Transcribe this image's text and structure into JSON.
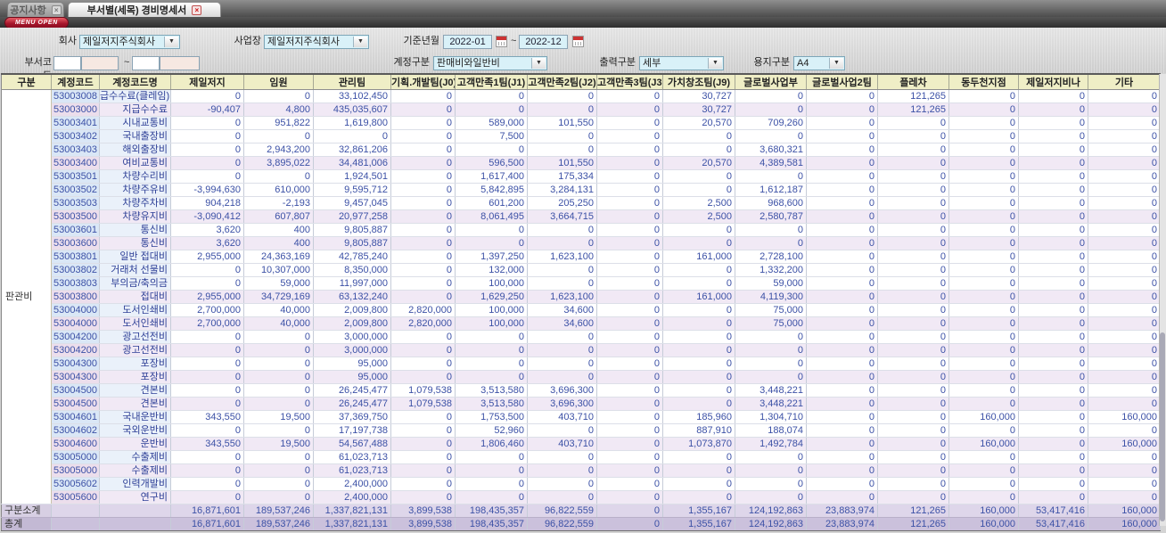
{
  "tabs": [
    {
      "label": "공지사항",
      "active": false
    },
    {
      "label": "부서별(세목) 경비명세서",
      "active": true
    }
  ],
  "menu_button_label": "MENU OPEN",
  "filters": {
    "company_label": "회사",
    "company_value": "제일저지주식회사",
    "site_label": "사업장",
    "site_value": "제일저지주식회사",
    "period_label": "기준년월",
    "period_from": "2022-01",
    "period_to": "2022-12",
    "dept_label": "부서코드",
    "account_label": "계정구분",
    "account_value": "판매비와일반비",
    "output_label": "출력구분",
    "output_value": "세부",
    "paper_label": "용지구분",
    "paper_value": "A4",
    "tilde": "~"
  },
  "table": {
    "group_label": "판관비",
    "columns": [
      "구분",
      "계정코드",
      "계정코드명",
      "제일저지",
      "임원",
      "관리팀",
      "기획.개발팀(J0)",
      "고객만족1팀(J1)",
      "고객만족2팀(J2)",
      "고객만족3팀(J3)",
      "가치창조팀(J9)",
      "글로벌사업부",
      "글로벌사업2팀",
      "플레차",
      "동두천지점",
      "제일저지비나",
      "기타"
    ],
    "rows": [
      {
        "code": "53003008",
        "name": "급수수료(클레임)",
        "type": "n",
        "v": [
          "0",
          "0",
          "33,102,450",
          "0",
          "0",
          "0",
          "0",
          "30,727",
          "0",
          "0",
          "121,265",
          "0",
          "0",
          "0"
        ]
      },
      {
        "code": "53003000",
        "name": "지급수수료",
        "type": "s",
        "v": [
          "-90,407",
          "4,800",
          "435,035,607",
          "0",
          "0",
          "0",
          "0",
          "30,727",
          "0",
          "0",
          "121,265",
          "0",
          "0",
          "0"
        ]
      },
      {
        "code": "53003401",
        "name": "시내교통비",
        "type": "n",
        "v": [
          "0",
          "951,822",
          "1,619,800",
          "0",
          "589,000",
          "101,550",
          "0",
          "20,570",
          "709,260",
          "0",
          "0",
          "0",
          "0",
          "0"
        ]
      },
      {
        "code": "53003402",
        "name": "국내출장비",
        "type": "n",
        "v": [
          "0",
          "0",
          "0",
          "0",
          "7,500",
          "0",
          "0",
          "0",
          "0",
          "0",
          "0",
          "0",
          "0",
          "0"
        ]
      },
      {
        "code": "53003403",
        "name": "해외출장비",
        "type": "n",
        "v": [
          "0",
          "2,943,200",
          "32,861,206",
          "0",
          "0",
          "0",
          "0",
          "0",
          "3,680,321",
          "0",
          "0",
          "0",
          "0",
          "0"
        ]
      },
      {
        "code": "53003400",
        "name": "여비교통비",
        "type": "s",
        "v": [
          "0",
          "3,895,022",
          "34,481,006",
          "0",
          "596,500",
          "101,550",
          "0",
          "20,570",
          "4,389,581",
          "0",
          "0",
          "0",
          "0",
          "0"
        ]
      },
      {
        "code": "53003501",
        "name": "차량수리비",
        "type": "n",
        "v": [
          "0",
          "0",
          "1,924,501",
          "0",
          "1,617,400",
          "175,334",
          "0",
          "0",
          "0",
          "0",
          "0",
          "0",
          "0",
          "0"
        ]
      },
      {
        "code": "53003502",
        "name": "차량주유비",
        "type": "n",
        "v": [
          "-3,994,630",
          "610,000",
          "9,595,712",
          "0",
          "5,842,895",
          "3,284,131",
          "0",
          "0",
          "1,612,187",
          "0",
          "0",
          "0",
          "0",
          "0"
        ]
      },
      {
        "code": "53003503",
        "name": "차량주차비",
        "type": "n",
        "v": [
          "904,218",
          "-2,193",
          "9,457,045",
          "0",
          "601,200",
          "205,250",
          "0",
          "2,500",
          "968,600",
          "0",
          "0",
          "0",
          "0",
          "0"
        ]
      },
      {
        "code": "53003500",
        "name": "차량유지비",
        "type": "s",
        "v": [
          "-3,090,412",
          "607,807",
          "20,977,258",
          "0",
          "8,061,495",
          "3,664,715",
          "0",
          "2,500",
          "2,580,787",
          "0",
          "0",
          "0",
          "0",
          "0"
        ]
      },
      {
        "code": "53003601",
        "name": "통신비",
        "type": "n",
        "v": [
          "3,620",
          "400",
          "9,805,887",
          "0",
          "0",
          "0",
          "0",
          "0",
          "0",
          "0",
          "0",
          "0",
          "0",
          "0"
        ]
      },
      {
        "code": "53003600",
        "name": "통신비",
        "type": "s",
        "v": [
          "3,620",
          "400",
          "9,805,887",
          "0",
          "0",
          "0",
          "0",
          "0",
          "0",
          "0",
          "0",
          "0",
          "0",
          "0"
        ]
      },
      {
        "code": "53003801",
        "name": "일반 접대비",
        "type": "n",
        "v": [
          "2,955,000",
          "24,363,169",
          "42,785,240",
          "0",
          "1,397,250",
          "1,623,100",
          "0",
          "161,000",
          "2,728,100",
          "0",
          "0",
          "0",
          "0",
          "0"
        ]
      },
      {
        "code": "53003802",
        "name": "거래처 선물비",
        "type": "n",
        "v": [
          "0",
          "10,307,000",
          "8,350,000",
          "0",
          "132,000",
          "0",
          "0",
          "0",
          "1,332,200",
          "0",
          "0",
          "0",
          "0",
          "0"
        ]
      },
      {
        "code": "53003803",
        "name": "부의금/축의금",
        "type": "n",
        "v": [
          "0",
          "59,000",
          "11,997,000",
          "0",
          "100,000",
          "0",
          "0",
          "0",
          "59,000",
          "0",
          "0",
          "0",
          "0",
          "0"
        ]
      },
      {
        "code": "53003800",
        "name": "접대비",
        "type": "s",
        "v": [
          "2,955,000",
          "34,729,169",
          "63,132,240",
          "0",
          "1,629,250",
          "1,623,100",
          "0",
          "161,000",
          "4,119,300",
          "0",
          "0",
          "0",
          "0",
          "0"
        ]
      },
      {
        "code": "53004000",
        "name": "도서인쇄비",
        "type": "n",
        "v": [
          "2,700,000",
          "40,000",
          "2,009,800",
          "2,820,000",
          "100,000",
          "34,600",
          "0",
          "0",
          "75,000",
          "0",
          "0",
          "0",
          "0",
          "0"
        ]
      },
      {
        "code": "53004000",
        "name": "도서인쇄비",
        "type": "s",
        "v": [
          "2,700,000",
          "40,000",
          "2,009,800",
          "2,820,000",
          "100,000",
          "34,600",
          "0",
          "0",
          "75,000",
          "0",
          "0",
          "0",
          "0",
          "0"
        ]
      },
      {
        "code": "53004200",
        "name": "광고선전비",
        "type": "n",
        "v": [
          "0",
          "0",
          "3,000,000",
          "0",
          "0",
          "0",
          "0",
          "0",
          "0",
          "0",
          "0",
          "0",
          "0",
          "0"
        ]
      },
      {
        "code": "53004200",
        "name": "광고선전비",
        "type": "s",
        "v": [
          "0",
          "0",
          "3,000,000",
          "0",
          "0",
          "0",
          "0",
          "0",
          "0",
          "0",
          "0",
          "0",
          "0",
          "0"
        ]
      },
      {
        "code": "53004300",
        "name": "포장비",
        "type": "n",
        "v": [
          "0",
          "0",
          "95,000",
          "0",
          "0",
          "0",
          "0",
          "0",
          "0",
          "0",
          "0",
          "0",
          "0",
          "0"
        ]
      },
      {
        "code": "53004300",
        "name": "포장비",
        "type": "s",
        "v": [
          "0",
          "0",
          "95,000",
          "0",
          "0",
          "0",
          "0",
          "0",
          "0",
          "0",
          "0",
          "0",
          "0",
          "0"
        ]
      },
      {
        "code": "53004500",
        "name": "견본비",
        "type": "n",
        "v": [
          "0",
          "0",
          "26,245,477",
          "1,079,538",
          "3,513,580",
          "3,696,300",
          "0",
          "0",
          "3,448,221",
          "0",
          "0",
          "0",
          "0",
          "0"
        ]
      },
      {
        "code": "53004500",
        "name": "견본비",
        "type": "s",
        "v": [
          "0",
          "0",
          "26,245,477",
          "1,079,538",
          "3,513,580",
          "3,696,300",
          "0",
          "0",
          "3,448,221",
          "0",
          "0",
          "0",
          "0",
          "0"
        ]
      },
      {
        "code": "53004601",
        "name": "국내운반비",
        "type": "n",
        "v": [
          "343,550",
          "19,500",
          "37,369,750",
          "0",
          "1,753,500",
          "403,710",
          "0",
          "185,960",
          "1,304,710",
          "0",
          "0",
          "160,000",
          "0",
          "160,000"
        ]
      },
      {
        "code": "53004602",
        "name": "국외운반비",
        "type": "n",
        "v": [
          "0",
          "0",
          "17,197,738",
          "0",
          "52,960",
          "0",
          "0",
          "887,910",
          "188,074",
          "0",
          "0",
          "0",
          "0",
          "0"
        ]
      },
      {
        "code": "53004600",
        "name": "운반비",
        "type": "s",
        "v": [
          "343,550",
          "19,500",
          "54,567,488",
          "0",
          "1,806,460",
          "403,710",
          "0",
          "1,073,870",
          "1,492,784",
          "0",
          "0",
          "160,000",
          "0",
          "160,000"
        ]
      },
      {
        "code": "53005000",
        "name": "수출제비",
        "type": "n",
        "v": [
          "0",
          "0",
          "61,023,713",
          "0",
          "0",
          "0",
          "0",
          "0",
          "0",
          "0",
          "0",
          "0",
          "0",
          "0"
        ]
      },
      {
        "code": "53005000",
        "name": "수출제비",
        "type": "s",
        "v": [
          "0",
          "0",
          "61,023,713",
          "0",
          "0",
          "0",
          "0",
          "0",
          "0",
          "0",
          "0",
          "0",
          "0",
          "0"
        ]
      },
      {
        "code": "53005602",
        "name": "인력개발비",
        "type": "n",
        "v": [
          "0",
          "0",
          "2,400,000",
          "0",
          "0",
          "0",
          "0",
          "0",
          "0",
          "0",
          "0",
          "0",
          "0",
          "0"
        ]
      },
      {
        "code": "53005600",
        "name": "연구비",
        "type": "s",
        "v": [
          "0",
          "0",
          "2,400,000",
          "0",
          "0",
          "0",
          "0",
          "0",
          "0",
          "0",
          "0",
          "0",
          "0",
          "0"
        ]
      }
    ],
    "subtotal": {
      "label": "구분소계",
      "v": [
        "16,871,601",
        "189,537,246",
        "1,337,821,131",
        "3,899,538",
        "198,435,357",
        "96,822,559",
        "0",
        "1,355,167",
        "124,192,863",
        "23,883,974",
        "121,265",
        "160,000",
        "53,417,416",
        "160,000"
      ]
    },
    "total": {
      "label": "총계",
      "v": [
        "16,871,601",
        "189,537,246",
        "1,337,821,131",
        "3,899,538",
        "198,435,357",
        "96,822,559",
        "0",
        "1,355,167",
        "124,192,863",
        "23,883,974",
        "121,265",
        "160,000",
        "53,417,416",
        "160,000"
      ]
    }
  },
  "colors": {
    "header_bg": "#efeec6",
    "subtotal_row_bg": "#ded6ea",
    "total_row_bg": "#cbc1dc",
    "group_cell_bg": "#fbf0da",
    "code_cell_bg": "#dae7f6",
    "sub_row_bg": "#f1e9f5",
    "number_text": "#3c51a6",
    "menu_button_red": "#a5142a",
    "input_cyan": "#d9f1f8",
    "input_pink": "#f6e8e2"
  }
}
